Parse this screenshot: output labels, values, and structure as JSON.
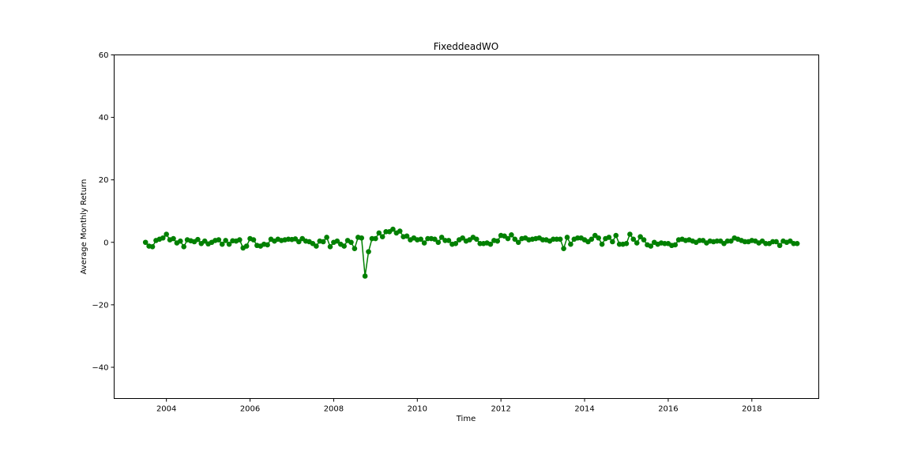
{
  "chart_data": {
    "type": "line",
    "title": "FixeddeadWO",
    "xlabel": "Time",
    "ylabel": "Average Monthly Return",
    "xlim": [
      2002.75,
      2019.6
    ],
    "ylim": [
      -50,
      60
    ],
    "x_ticks": [
      2004,
      2006,
      2008,
      2010,
      2012,
      2014,
      2016,
      2018
    ],
    "y_ticks": [
      -40,
      -20,
      0,
      20,
      40,
      60
    ],
    "grid": false,
    "legend": "none",
    "marker": "circle",
    "color": "#008000",
    "series": [
      {
        "x_start": "2003-07",
        "frequency": "monthly",
        "values": [
          0.0,
          -1.2,
          -1.4,
          0.6,
          1.0,
          1.4,
          2.6,
          0.8,
          1.2,
          -0.2,
          0.4,
          -1.4,
          0.8,
          0.5,
          0.2,
          0.9,
          -0.4,
          0.4,
          -0.5,
          0.0,
          0.6,
          0.8,
          -0.6,
          0.6,
          -0.6,
          0.5,
          0.4,
          0.8,
          -1.8,
          -1.2,
          1.2,
          0.8,
          -1.0,
          -1.2,
          -0.6,
          -0.8,
          1.0,
          0.4,
          1.0,
          0.6,
          0.8,
          1.0,
          0.9,
          1.1,
          0.2,
          1.2,
          0.4,
          0.2,
          -0.4,
          -1.2,
          0.4,
          0.2,
          1.6,
          -1.4,
          0.0,
          0.4,
          -0.6,
          -1.2,
          0.6,
          0.0,
          -2.0,
          1.6,
          1.4,
          -10.8,
          -3.0,
          1.2,
          1.2,
          3.0,
          1.8,
          3.4,
          3.4,
          4.2,
          3.0,
          3.6,
          1.8,
          2.0,
          0.8,
          1.4,
          0.8,
          1.0,
          -0.2,
          1.2,
          1.2,
          1.0,
          0.0,
          1.6,
          0.6,
          0.6,
          -0.6,
          -0.4,
          0.8,
          1.4,
          0.4,
          0.8,
          1.6,
          1.0,
          -0.4,
          -0.4,
          -0.2,
          -0.6,
          0.6,
          0.4,
          2.2,
          2.0,
          1.2,
          2.4,
          1.0,
          0.0,
          1.2,
          1.4,
          0.8,
          1.0,
          1.2,
          1.4,
          0.8,
          0.8,
          0.4,
          1.0,
          1.0,
          1.0,
          -2.0,
          1.6,
          -0.6,
          1.0,
          1.4,
          1.4,
          0.8,
          0.2,
          1.0,
          2.2,
          1.4,
          -0.6,
          1.2,
          1.6,
          0.2,
          2.2,
          -0.6,
          -0.6,
          -0.4,
          2.6,
          1.0,
          -0.2,
          1.8,
          0.8,
          -0.8,
          -1.2,
          0.0,
          -0.6,
          -0.2,
          -0.4,
          -0.4,
          -1.0,
          -0.8,
          0.8,
          1.0,
          0.6,
          0.8,
          0.4,
          0.0,
          0.6,
          0.6,
          -0.2,
          0.4,
          0.2,
          0.4,
          0.4,
          -0.4,
          0.4,
          0.4,
          1.4,
          1.0,
          0.6,
          0.2,
          0.2,
          0.6,
          0.4,
          -0.2,
          0.4,
          -0.4,
          -0.4,
          0.2,
          0.2,
          -1.0,
          0.4,
          0.0,
          0.4,
          -0.4,
          -0.4
        ]
      }
    ]
  }
}
